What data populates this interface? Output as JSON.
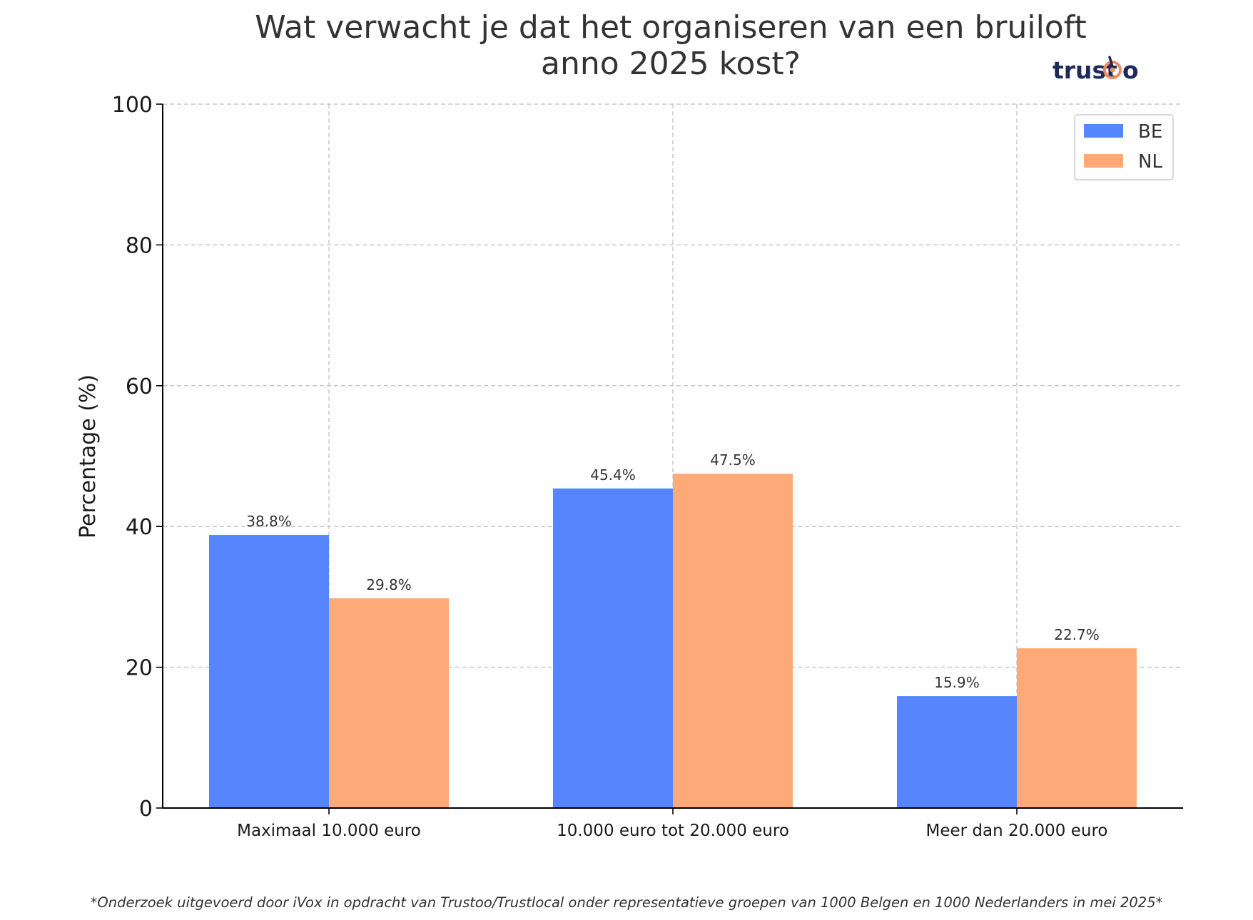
{
  "chart_data": {
    "type": "bar",
    "title_lines": [
      "Wat verwacht je dat het organiseren van een bruiloft",
      "anno 2025 kost?"
    ],
    "xlabel": "",
    "ylabel": "Percentage (%)",
    "ylim": [
      0,
      100
    ],
    "yticks": [
      0,
      20,
      40,
      60,
      80,
      100
    ],
    "grid": true,
    "legend_position": "top-right",
    "categories": [
      "Maximaal 10.000 euro",
      "10.000 euro tot 20.000 euro",
      "Meer dan 20.000 euro"
    ],
    "series": [
      {
        "name": "BE",
        "color": "#5686fe",
        "values": [
          38.8,
          45.4,
          15.9
        ],
        "labels": [
          "38.8%",
          "45.4%",
          "15.9%"
        ]
      },
      {
        "name": "NL",
        "color": "#feaa78",
        "values": [
          29.8,
          47.5,
          22.7
        ],
        "labels": [
          "29.8%",
          "47.5%",
          "22.7%"
        ]
      }
    ],
    "footnote": "*Onderzoek uitgevoerd door iVox in opdracht van Trustoo/Trustlocal onder representatieve groepen van 1000 Belgen en 1000 Nederlanders in mei 2025*"
  },
  "logo": {
    "text_main": "trust",
    "text_end": "o",
    "brand_color": "#1e2a5a",
    "accent_color": "#f08a5d"
  }
}
